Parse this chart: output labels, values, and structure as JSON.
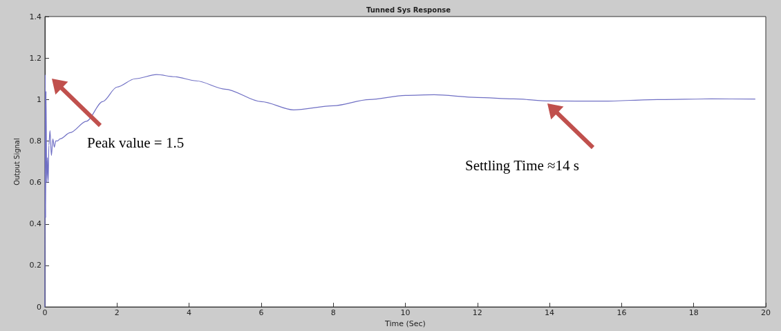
{
  "chart_data": {
    "type": "line",
    "title": "Tunned Sys Response",
    "xlabel": "Time (Sec)",
    "ylabel": "Output Signal",
    "xlim": [
      0,
      20
    ],
    "xticks": [
      0,
      2,
      4,
      6,
      8,
      10,
      12,
      14,
      16,
      18,
      20
    ],
    "ylim": [
      0,
      1.4
    ],
    "yticks": [
      0,
      0.2,
      0.4,
      0.6,
      0.8,
      1,
      1.2,
      1.4
    ],
    "grid": false,
    "marker": "none",
    "line_style": "solid",
    "series": [
      {
        "color": "#6f6fc4",
        "x": [
          0,
          0.01,
          0.02,
          0.03,
          0.05,
          0.07,
          0.09,
          0.11,
          0.14,
          0.18,
          0.22,
          0.26,
          0.3,
          0.35,
          0.42,
          0.7,
          1.15,
          1.6,
          2,
          2.5,
          3.1,
          3.6,
          4.2,
          5,
          6,
          6.9,
          8,
          9,
          10,
          10.8,
          12,
          13,
          14,
          15.5,
          17,
          18.5,
          19.7
        ],
        "values": [
          0,
          1.12,
          0.43,
          1.04,
          0.6,
          0.72,
          0.6,
          0.78,
          0.85,
          0.73,
          0.81,
          0.77,
          0.8,
          0.8,
          0.81,
          0.84,
          0.895,
          0.99,
          1.06,
          1.1,
          1.12,
          1.11,
          1.09,
          1.05,
          0.99,
          0.95,
          0.97,
          1,
          1.02,
          1.023,
          1.01,
          1.003,
          0.993,
          0.992,
          1,
          1.003,
          1.002
        ]
      }
    ],
    "annotations": [
      "Peak value = 1.5",
      "Settling Time ≈14 s"
    ]
  }
}
